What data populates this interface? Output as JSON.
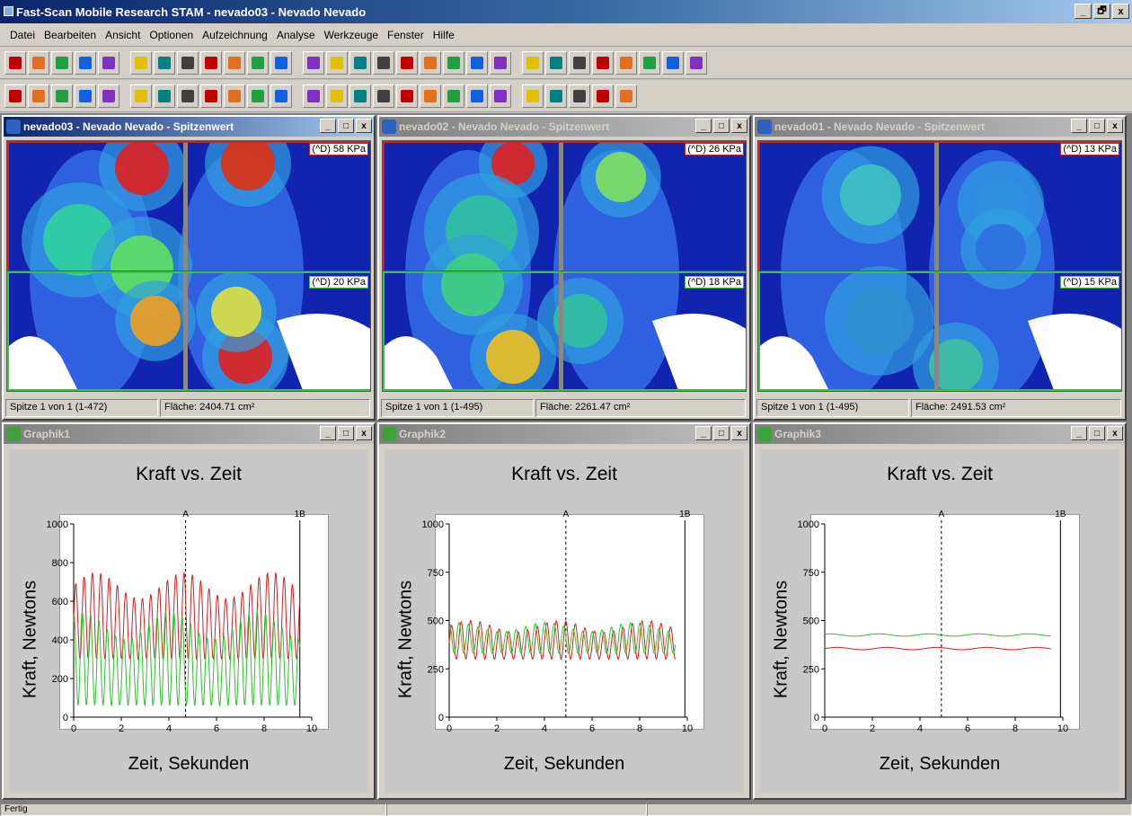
{
  "app": {
    "title": "Fast-Scan Mobile Research STAM - nevado03 - Nevado  Nevado",
    "controls": [
      "_",
      "🗗",
      "x"
    ]
  },
  "menu": [
    "Datei",
    "Bearbeiten",
    "Ansicht",
    "Optionen",
    "Aufzeichnung",
    "Analyse",
    "Werkzeuge",
    "Fenster",
    "Hilfe"
  ],
  "toolbar1_icons": [
    "new-scan-icon",
    "multi-scan-icon",
    "record-icon",
    "record-icon",
    "record-icon",
    "blank-page-icon",
    "open-icon",
    "save-icon",
    "print-icon",
    "print-preview-icon",
    "copy-icon",
    "paste-icon",
    "export-icon",
    "first-frame-icon",
    "prev-frame-icon",
    "prev-icon",
    "stop-icon",
    "play-icon",
    "next-icon",
    "last-icon",
    "mark-icon",
    "trim-icon",
    "filter-icon",
    "tool-icon",
    "color-scale-icon",
    "table-icon",
    "chart-icon",
    "help-icon",
    "context-help-icon"
  ],
  "toolbar2_icons": [
    "pressure-map-icon",
    "target-icon",
    "chart-icon",
    "refresh-icon",
    "avg1-icon",
    "avg2-icon",
    "rotate-icon",
    "gait-icon",
    "peak-icon",
    "star-icon",
    "star-icon",
    "force-icon",
    "numbers-icon",
    "grid-icon",
    "graph-icon",
    "foot-icon",
    "knee-icon",
    "stat-icon",
    "report-icon",
    "pdf-icon",
    "camera-icon",
    "camera-icon",
    "compare-icon",
    "sync-icon",
    "layout-icon",
    "layout2-icon"
  ],
  "map_windows": [
    {
      "title": "nevado03 - Nevado  Nevado - Spitzenwert",
      "top_label": "(^D) 58 KPa",
      "bottom_label": "(^D) 20 KPa",
      "status1": "Spitze 1 von 1 (1-472)",
      "status2": "Fläche: 2404.71 cm²",
      "active": true
    },
    {
      "title": "nevado02 - Nevado  Nevado - Spitzenwert",
      "top_label": "(^D) 26 KPa",
      "bottom_label": "(^D) 18 KPa",
      "status1": "Spitze 1 von 1 (1-495)",
      "status2": "Fläche: 2261.47 cm²",
      "active": false
    },
    {
      "title": "nevado01 - Nevado  Nevado - Spitzenwert",
      "top_label": "(^D) 13 KPa",
      "bottom_label": "(^D) 15 KPa",
      "status1": "Spitze 1 von 1 (1-495)",
      "status2": "Fläche: 2491.53 cm²",
      "active": false
    }
  ],
  "graph_windows": [
    {
      "title": "Graphik1",
      "chart_title": "Kraft vs. Zeit",
      "xlabel": "Zeit, Sekunden",
      "ylabel": "Kraft, Newtons"
    },
    {
      "title": "Graphik2",
      "chart_title": "Kraft vs. Zeit",
      "xlabel": "Zeit, Sekunden",
      "ylabel": "Kraft, Newtons"
    },
    {
      "title": "Graphik3",
      "chart_title": "Kraft vs. Zeit",
      "xlabel": "Zeit, Sekunden",
      "ylabel": "Kraft, Newtons"
    }
  ],
  "chart_data": [
    {
      "type": "line",
      "title": "Kraft vs. Zeit",
      "xlabel": "Zeit, Sekunden",
      "ylabel": "Kraft, Newtons",
      "xlim": [
        0,
        10
      ],
      "ylim": [
        0,
        1000
      ],
      "xticks": [
        0,
        2,
        4,
        6,
        8,
        10
      ],
      "yticks": [
        0,
        200,
        400,
        600,
        800,
        1000
      ],
      "markers": [
        {
          "label": "A",
          "x": 4.7
        },
        {
          "label": "1B",
          "x": 9.5
        }
      ],
      "series": [
        {
          "color": "#d02020",
          "pattern": "oscillating",
          "min": 300,
          "max": 750,
          "period": 0.35
        },
        {
          "color": "#30c030",
          "pattern": "oscillating",
          "min": 60,
          "max": 550,
          "period": 0.35
        }
      ]
    },
    {
      "type": "line",
      "title": "Kraft vs. Zeit",
      "xlabel": "Zeit, Sekunden",
      "ylabel": "Kraft, Newtons",
      "xlim": [
        0,
        10
      ],
      "ylim": [
        0,
        1000
      ],
      "xticks": [
        0,
        2,
        4,
        6,
        8,
        10
      ],
      "yticks": [
        0,
        250,
        500,
        750,
        1000
      ],
      "markers": [
        {
          "label": "A",
          "x": 4.9
        },
        {
          "label": "1B",
          "x": 9.9
        }
      ],
      "series": [
        {
          "color": "#d02020",
          "pattern": "oscillating",
          "min": 300,
          "max": 500,
          "period": 0.4
        },
        {
          "color": "#30c030",
          "pattern": "oscillating",
          "min": 330,
          "max": 490,
          "period": 0.4
        }
      ]
    },
    {
      "type": "line",
      "title": "Kraft vs. Zeit",
      "xlabel": "Zeit, Sekunden",
      "ylabel": "Kraft, Newtons",
      "xlim": [
        0,
        10
      ],
      "ylim": [
        0,
        1000
      ],
      "xticks": [
        0,
        2,
        4,
        6,
        8,
        10
      ],
      "yticks": [
        0,
        250,
        500,
        750,
        1000
      ],
      "markers": [
        {
          "label": "A",
          "x": 4.9
        },
        {
          "label": "1B",
          "x": 9.9
        }
      ],
      "series": [
        {
          "color": "#d02020",
          "pattern": "flat",
          "level": 355
        },
        {
          "color": "#30c030",
          "pattern": "flat",
          "level": 425
        }
      ]
    }
  ],
  "status": {
    "text": "Fertig"
  }
}
